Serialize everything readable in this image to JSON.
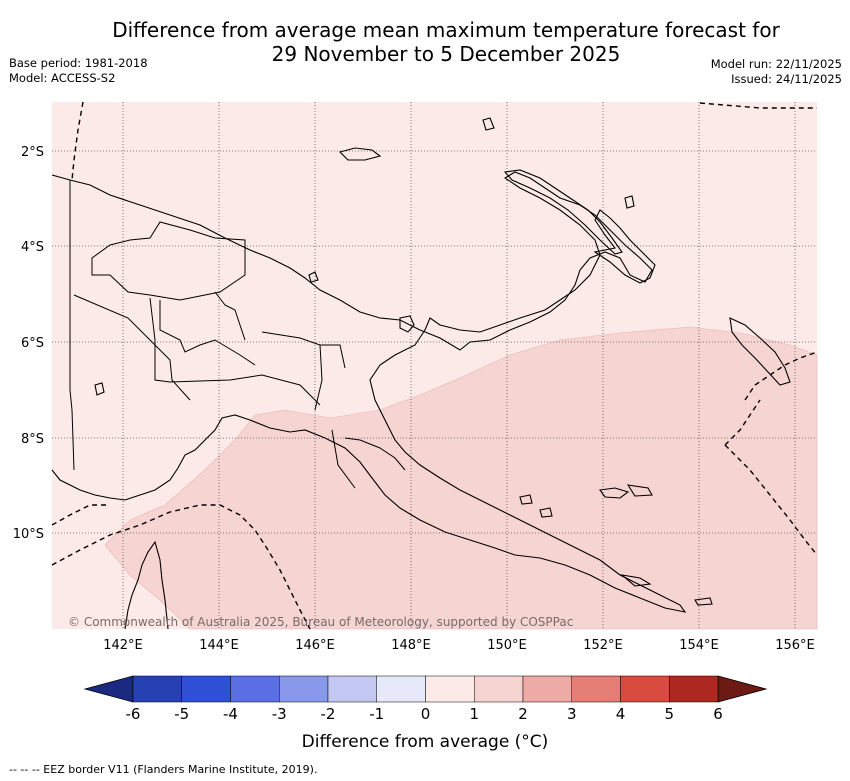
{
  "title": {
    "line1": "Difference from average mean maximum temperature forecast for",
    "line2": "29 November to 5 December 2025"
  },
  "meta": {
    "base_period": "Base period: 1981-2018",
    "model": "Model: ACCESS-S2",
    "model_run": "Model run: 22/11/2025",
    "issued": "Issued: 24/11/2025"
  },
  "map": {
    "lat_labels": [
      "2°S",
      "4°S",
      "6°S",
      "8°S",
      "10°S"
    ],
    "lon_labels": [
      "142°E",
      "144°E",
      "146°E",
      "148°E",
      "150°E",
      "152°E",
      "154°E",
      "156°E"
    ],
    "copyright": "© Commonwealth of Australia 2025, Bureau of Meteorology, supported by COSPPac",
    "region_anomaly_range": {
      "north": "0 to 1",
      "south": "1 to 2"
    }
  },
  "colorbar": {
    "ticks": [
      "-6",
      "-5",
      "-4",
      "-3",
      "-2",
      "-1",
      "0",
      "1",
      "2",
      "3",
      "4",
      "5",
      "6"
    ],
    "colors": [
      "#1b2a80",
      "#2541b2",
      "#3050d8",
      "#5b6fe4",
      "#8899ec",
      "#c3c8f3",
      "#e6e9f9",
      "#fbeae7",
      "#f5d3d1",
      "#eeaba5",
      "#e57e75",
      "#d94a3f",
      "#ae2822",
      "#6e1a14"
    ],
    "label": "Difference from average (°C)"
  },
  "footer": "-- -- -- EEZ border V11 (Flanders Marine Institute, 2019)."
}
